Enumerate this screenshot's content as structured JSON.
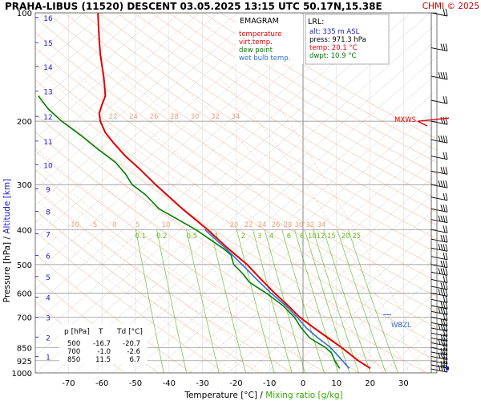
{
  "header": {
    "title": "PRAHA-LIBUS (11520)   DESCENT   03.05.2025 13:15 UTC  50.17N,15.38E",
    "copyright": "CHMI © 2025"
  },
  "legend": {
    "heading": "EMAGRAM",
    "items": [
      {
        "label": "temperature",
        "color": "#e00000"
      },
      {
        "label": "virt.temp.",
        "color": "#e00000"
      },
      {
        "label": "dew point",
        "color": "#008000"
      },
      {
        "label": "wet bulb temp.",
        "color": "#3070d0"
      }
    ]
  },
  "lrl": {
    "heading": "LRL:",
    "lines": [
      {
        "text": "alt: 335 m ASL",
        "color": "#1a1acc"
      },
      {
        "text": "press: 971.3 hPa",
        "color": "#000000"
      },
      {
        "text": "temp: 20.1 °C",
        "color": "#e00000"
      },
      {
        "text": "dwpt: 10.9 °C",
        "color": "#008000"
      }
    ]
  },
  "table": {
    "headers": [
      "p [hPa]",
      "T",
      "Td [°C]"
    ],
    "rows": [
      [
        "500",
        "-16.7",
        "-20.7"
      ],
      [
        "700",
        "-1.0",
        "-2.6"
      ],
      [
        "850",
        "11.5",
        "6.7"
      ]
    ]
  },
  "axes": {
    "ylabel_pressure": "Pressure [hPa]",
    "ylabel_sep": " / ",
    "ylabel_altitude": "Altitude [km]",
    "xlabel_temp": "Temperature [°C]",
    "xlabel_sep": " / ",
    "xlabel_mixing": "Mixing ratio [g/kg]"
  },
  "markers": {
    "mxws": "MXWS",
    "wbzl": "WBZL"
  },
  "chart_data": {
    "type": "line",
    "subtype": "emagram",
    "y_scale": "log",
    "ylim": [
      1000,
      100
    ],
    "xlim": [
      -80,
      40
    ],
    "x_ticks": [
      -70,
      -60,
      -50,
      -40,
      -30,
      -20,
      -10,
      0,
      10,
      20,
      30
    ],
    "p_ticks": [
      100,
      200,
      300,
      400,
      500,
      600,
      700,
      850,
      925,
      1000
    ],
    "km_ticks": [
      {
        "km": "1",
        "p": 900
      },
      {
        "km": "2",
        "p": 795
      },
      {
        "km": "3",
        "p": 701
      },
      {
        "km": "4",
        "p": 616
      },
      {
        "km": "5",
        "p": 540
      },
      {
        "km": "6",
        "p": 472
      },
      {
        "km": "7",
        "p": 411
      },
      {
        "km": "8",
        "p": 356
      },
      {
        "km": "9",
        "p": 308
      },
      {
        "km": "10",
        "p": 264
      },
      {
        "km": "11",
        "p": 227
      },
      {
        "km": "12",
        "p": 194
      },
      {
        "km": "13",
        "p": 165
      },
      {
        "km": "14",
        "p": 141
      },
      {
        "km": "15",
        "p": 121
      },
      {
        "km": "16",
        "p": 103
      }
    ],
    "mixing_ratio_labels": [
      "0.1",
      "0.2",
      "0.5",
      "1",
      "2",
      "3",
      "4",
      "6",
      "8",
      "10",
      "12",
      "15",
      "20",
      "25"
    ],
    "mixing_ratios": [
      0.1,
      0.2,
      0.5,
      1,
      2,
      3,
      4,
      6,
      8,
      10,
      12,
      15,
      20,
      25
    ],
    "mixing_ratio_label_p": 400,
    "adiabat_labels_upper": [
      "22",
      "24",
      "26",
      "28",
      "30",
      "32",
      "34"
    ],
    "adiabat_labels_mid": [
      "-10",
      "-5",
      "0",
      "5",
      "10",
      "20",
      "22",
      "24",
      "26",
      "28",
      "30",
      "32",
      "34"
    ],
    "series": [
      {
        "name": "temperature",
        "color": "#e00000",
        "points": [
          [
            971.3,
            20.1
          ],
          [
            925,
            16.5
          ],
          [
            850,
            11.5
          ],
          [
            800,
            7.5
          ],
          [
            750,
            3.3
          ],
          [
            700,
            -1.0
          ],
          [
            650,
            -4.5
          ],
          [
            600,
            -8.5
          ],
          [
            550,
            -12.5
          ],
          [
            500,
            -16.7
          ],
          [
            450,
            -22.5
          ],
          [
            400,
            -28.5
          ],
          [
            350,
            -36
          ],
          [
            300,
            -44
          ],
          [
            270,
            -49
          ],
          [
            250,
            -53
          ],
          [
            230,
            -56.5
          ],
          [
            215,
            -59
          ],
          [
            200,
            -60.5
          ],
          [
            190,
            -60.8
          ],
          [
            180,
            -60
          ],
          [
            170,
            -59
          ],
          [
            160,
            -59.2
          ],
          [
            150,
            -59.5
          ],
          [
            140,
            -60
          ],
          [
            130,
            -60.5
          ],
          [
            120,
            -60.8
          ],
          [
            110,
            -61
          ],
          [
            100,
            -61.2
          ]
        ]
      },
      {
        "name": "dew point",
        "color": "#008000",
        "points": [
          [
            971.3,
            10.9
          ],
          [
            925,
            9.5
          ],
          [
            880,
            8.5
          ],
          [
            850,
            6.7
          ],
          [
            800,
            2
          ],
          [
            750,
            -0.5
          ],
          [
            700,
            -2.6
          ],
          [
            650,
            -6
          ],
          [
            600,
            -11
          ],
          [
            560,
            -16
          ],
          [
            530,
            -18
          ],
          [
            500,
            -20.7
          ],
          [
            470,
            -21.5
          ],
          [
            450,
            -24
          ],
          [
            400,
            -32
          ],
          [
            350,
            -43
          ],
          [
            320,
            -47
          ],
          [
            300,
            -51
          ],
          [
            280,
            -53
          ],
          [
            260,
            -56
          ],
          [
            240,
            -61
          ],
          [
            220,
            -66
          ],
          [
            200,
            -72
          ],
          [
            185,
            -76
          ],
          [
            170,
            -79
          ]
        ]
      },
      {
        "name": "wet bulb temp.",
        "color": "#3070d0",
        "points": [
          [
            971.3,
            13.8
          ],
          [
            925,
            11.8
          ],
          [
            850,
            8.2
          ],
          [
            800,
            4.5
          ],
          [
            750,
            1.0
          ],
          [
            700,
            -1.8
          ],
          [
            650,
            -5.2
          ],
          [
            600,
            -9.6
          ],
          [
            550,
            -13.8
          ],
          [
            500,
            -18.2
          ],
          [
            450,
            -23.2
          ],
          [
            400,
            -29.3
          ]
        ]
      }
    ],
    "wind_barbs": [
      100,
      125,
      150,
      175,
      200,
      225,
      250,
      275,
      300,
      325,
      350,
      375,
      400,
      425,
      450,
      475,
      500,
      525,
      550,
      575,
      600,
      625,
      650,
      675,
      700,
      725,
      750,
      775,
      800,
      825,
      850,
      875,
      900,
      925,
      950,
      975
    ]
  }
}
